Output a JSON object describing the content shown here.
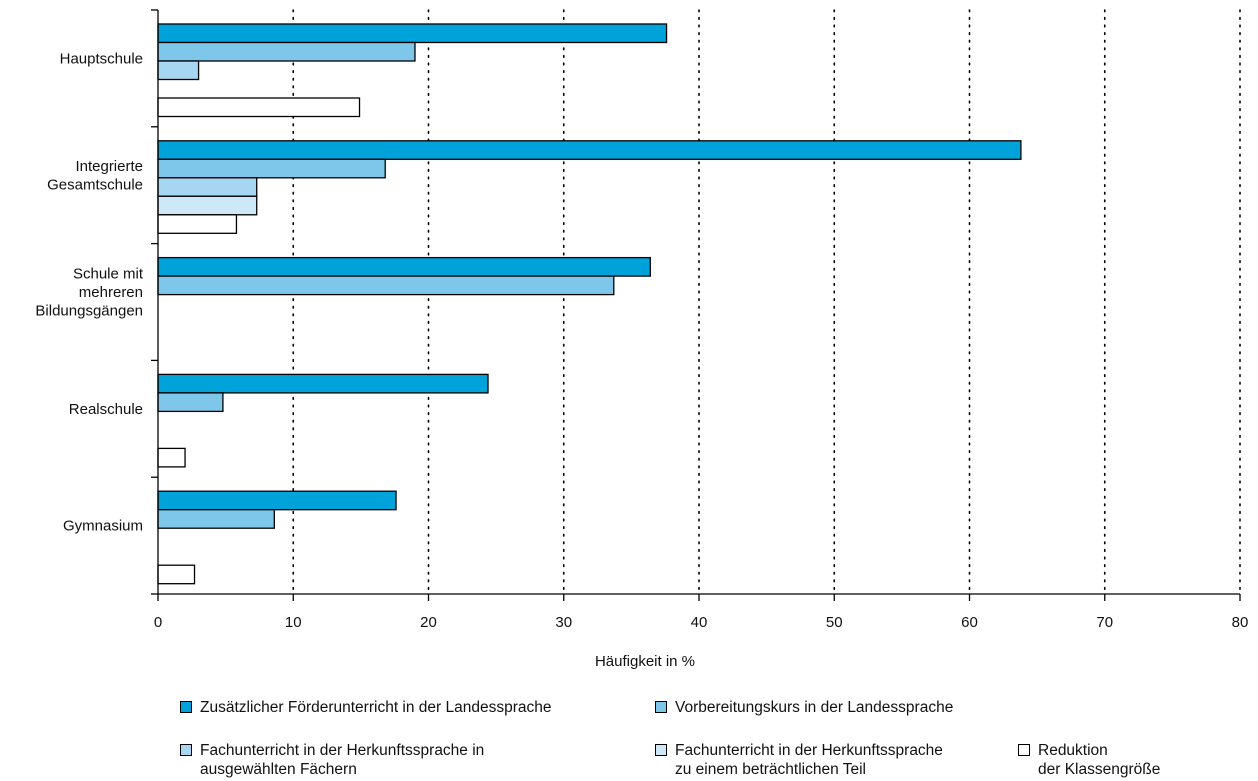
{
  "chart_data": {
    "type": "bar",
    "orientation": "horizontal",
    "categories": [
      [
        "Hauptschule"
      ],
      [
        "Integrierte",
        "Gesamtschule"
      ],
      [
        "Schule mit",
        "mehreren",
        "Bildungsgängen"
      ],
      [
        "Realschule"
      ],
      [
        "Gymnasium"
      ]
    ],
    "series": [
      {
        "name": "Zusätzlicher Förderunterricht in der Landessprache",
        "color": "#00a3d9",
        "values": [
          37.6,
          63.8,
          36.4,
          24.4,
          17.6
        ]
      },
      {
        "name": "Vorbereitungskurs in der Landessprache",
        "color": "#7fc7ea",
        "values": [
          19.0,
          16.8,
          33.7,
          4.8,
          8.6
        ]
      },
      {
        "name": "Fachunterricht in der Herkunftssprache in ausgewählten Fächern",
        "color": "#a6d6f1",
        "values": [
          3.0,
          7.3,
          0,
          0,
          0
        ]
      },
      {
        "name": "Fachunterricht in der Herkunftssprache zu einem beträchtlichen Teil",
        "color": "#cfe8f8",
        "values": [
          0,
          7.3,
          0,
          0,
          0
        ]
      },
      {
        "name": "Reduktion der Klassengröße",
        "color": "#ffffff",
        "values": [
          14.9,
          5.8,
          0,
          2.0,
          2.7
        ]
      }
    ],
    "xlabel": "Häufigkeit in %",
    "xlim": [
      0,
      80
    ],
    "xticks": [
      "0",
      "10",
      "20",
      "30",
      "40",
      "50",
      "60",
      "70",
      "80"
    ],
    "grid": "vertical dotted",
    "legend": {
      "placement": "bottom",
      "items": [
        {
          "lines": [
            "Zusätzlicher Förderunterricht in der Landessprache"
          ],
          "color": "#00a3d9"
        },
        {
          "lines": [
            "Vorbereitungskurs in der Landessprache"
          ],
          "color": "#7fc7ea"
        },
        {
          "lines": [
            "Fachunterricht in der Herkunftssprache in",
            "ausgewählten Fächern"
          ],
          "color": "#a6d6f1"
        },
        {
          "lines": [
            "Fachunterricht in der Herkunftssprache",
            "zu einem beträchtlichen Teil"
          ],
          "color": "#cfe8f8"
        },
        {
          "lines": [
            "Reduktion",
            "der Klassengröße"
          ],
          "color": "#ffffff"
        }
      ]
    }
  }
}
